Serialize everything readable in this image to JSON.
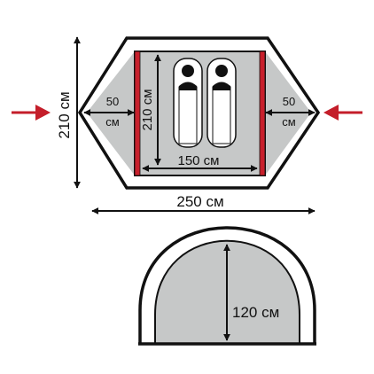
{
  "colors": {
    "outline": "#111111",
    "floor": "#c6c8c8",
    "accent_red": "#c8202c",
    "arrow_red": "#c41e2a",
    "sleeping_pad": "#ffffff"
  },
  "icons": [
    "sleeping-bag-icon",
    "entrance-arrow-icon",
    "dimension-arrow-icon"
  ],
  "top_view": {
    "overall_width": "250 см",
    "overall_depth": "210 см",
    "inner_width": "150 см",
    "inner_depth": "210 см",
    "vestibule_left_value": "50",
    "vestibule_left_unit": "см",
    "vestibule_right_value": "50",
    "vestibule_right_unit": "см",
    "sleeping_places": 2
  },
  "side_view": {
    "height": "120 см"
  }
}
